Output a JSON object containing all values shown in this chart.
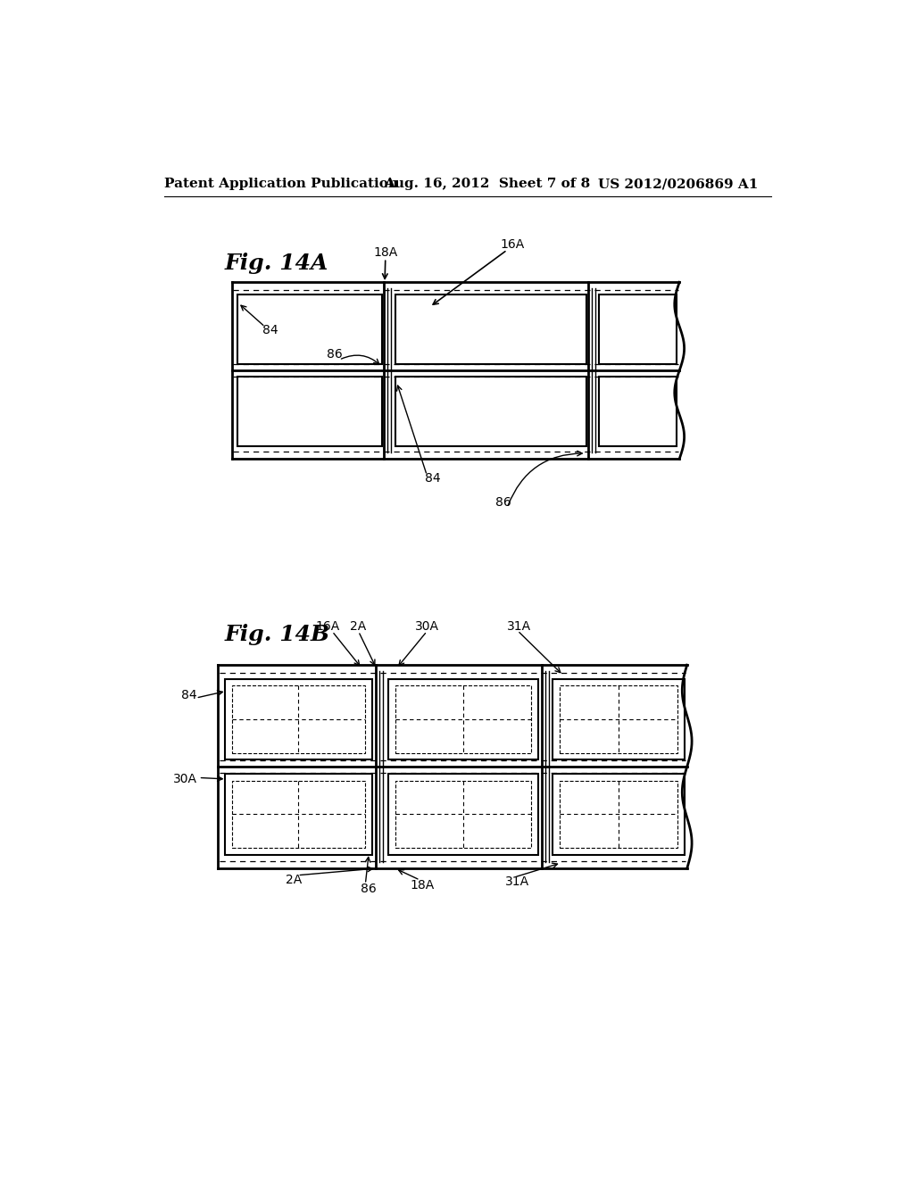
{
  "bg_color": "#ffffff",
  "header_left": "Patent Application Publication",
  "header_mid": "Aug. 16, 2012  Sheet 7 of 8",
  "header_right": "US 2012/0206869 A1",
  "fig14A_label": "Fig. 14A",
  "fig14B_label": "Fig. 14B"
}
